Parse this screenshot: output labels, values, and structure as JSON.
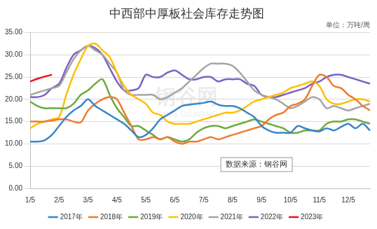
{
  "chart_data": {
    "type": "line",
    "title": "中西部中厚板社会库存走势图",
    "subtitle": "单位：万吨/周",
    "annotations": [
      "数据来源：钢谷网",
      "钢谷网",
      "GANG GU WANG"
    ],
    "categories": [
      "1/5",
      null,
      null,
      null,
      "2/5",
      null,
      null,
      null,
      "3/5",
      null,
      null,
      null,
      "4/5",
      null,
      null,
      null,
      "5/5",
      null,
      null,
      null,
      "6/5",
      null,
      null,
      null,
      "7/5",
      null,
      null,
      null,
      "8/5",
      null,
      null,
      null,
      "9/5",
      null,
      null,
      null,
      "10/5",
      null,
      null,
      null,
      "11/5",
      null,
      null,
      null,
      "12/5",
      null,
      null,
      null
    ],
    "ylim": [
      0,
      35
    ],
    "yticks": [
      {
        "value": 0,
        "label": "0.00"
      },
      {
        "value": 5,
        "label": "5.00"
      },
      {
        "value": 10,
        "label": "10.00"
      },
      {
        "value": 15,
        "label": "15.00"
      },
      {
        "value": 20,
        "label": "20.00"
      },
      {
        "value": 25,
        "label": "25.00"
      },
      {
        "value": 30,
        "label": "30.00"
      },
      {
        "value": 35,
        "label": "35.00"
      }
    ],
    "grid": true,
    "legend": "bottom",
    "series": [
      {
        "name": "2017年",
        "color": "#3b86c6",
        "values": [
          10.5,
          10.5,
          10.8,
          12,
          14,
          16,
          17.5,
          18.5,
          20,
          18.5,
          17.5,
          16.5,
          15.5,
          14.5,
          13,
          11.5,
          12,
          13.5,
          15.5,
          16.5,
          17.5,
          18.5,
          18.8,
          19,
          19.2,
          19.5,
          18.8,
          18.5,
          18.5,
          18,
          17,
          16,
          14,
          13,
          12.5,
          12.5,
          12.5,
          14,
          13.5,
          13,
          12.8,
          13.5,
          13,
          13.8,
          14.5,
          13.5,
          14.5,
          13
        ]
      },
      {
        "name": "2018年",
        "color": "#ed7d31",
        "values": [
          15,
          15,
          15,
          15.2,
          15.5,
          15.5,
          15,
          14.8,
          17.5,
          19,
          20,
          20.5,
          20,
          17,
          14,
          11,
          11,
          11.5,
          11,
          11.5,
          10.5,
          10,
          10.5,
          10.5,
          11,
          11.5,
          11,
          11.5,
          12,
          12.5,
          13,
          13.5,
          14,
          15.5,
          16.5,
          17,
          18.5,
          19,
          20,
          23,
          25.5,
          25,
          23,
          22.5,
          21,
          20,
          18.5,
          17.5
        ]
      },
      {
        "name": "2019年",
        "color": "#6aab3f",
        "values": [
          19.5,
          18.5,
          18,
          18,
          18,
          18,
          19,
          21,
          22,
          23.5,
          24.5,
          21,
          18,
          16,
          14,
          14,
          13,
          12,
          11,
          11.5,
          11,
          10.5,
          11,
          12.5,
          13.5,
          14,
          14,
          13.5,
          14,
          14.5,
          15,
          15.5,
          15,
          14.5,
          14,
          13.5,
          12.5,
          12.5,
          13,
          13,
          13,
          14.5,
          15,
          15,
          15.5,
          15.5,
          15,
          14.5
        ]
      },
      {
        "name": "2020年",
        "color": "#ffc000",
        "values": [
          13.5,
          14.5,
          15,
          15.5,
          16,
          21,
          25.5,
          29,
          32,
          32.5,
          31,
          29.5,
          26,
          23,
          21,
          20,
          19,
          17,
          16.5,
          15,
          14.5,
          14.5,
          14.5,
          15,
          15.5,
          16,
          16.5,
          17,
          17,
          17.5,
          18.5,
          19.5,
          20,
          20.5,
          21,
          21.5,
          22.5,
          23,
          23.5,
          24,
          23,
          20,
          19,
          19,
          19.5,
          20,
          20,
          19.5
        ]
      },
      {
        "name": "2021年",
        "color": "#a5a5a5",
        "values": [
          21,
          21.5,
          22,
          22.5,
          23,
          26,
          29,
          31,
          32,
          31,
          30,
          28,
          26,
          22,
          21,
          21,
          21,
          21,
          20,
          20.5,
          21.5,
          22.5,
          24,
          25.5,
          27,
          28,
          28,
          28,
          27.5,
          26,
          24,
          22,
          21,
          20.5,
          20,
          19,
          18,
          18.5,
          19.5,
          20.5,
          20,
          18,
          18.5,
          18,
          17.5,
          18,
          18.5,
          19
        ]
      },
      {
        "name": "2022年",
        "color": "#7b62c4",
        "values": [
          20.5,
          20.5,
          21,
          22.5,
          23.5,
          27,
          30,
          31,
          32,
          31.5,
          30,
          27,
          24,
          22,
          22,
          22.5,
          25.5,
          25,
          25,
          26,
          26.5,
          25.5,
          24.5,
          24.5,
          25,
          25,
          24,
          24.5,
          24.5,
          24.5,
          23.5,
          23,
          21,
          20.5,
          20.5,
          21,
          21.5,
          22,
          22.5,
          23.5,
          24,
          25,
          25.5,
          25.5,
          25,
          24.5,
          24,
          23.5
        ]
      },
      {
        "name": "2023年",
        "color": "#e8141b",
        "values": [
          24,
          24.6,
          25.1,
          25.5,
          null,
          null,
          null,
          null,
          null,
          null,
          null,
          null,
          null,
          null,
          null,
          null,
          null,
          null,
          null,
          null,
          null,
          null,
          null,
          null,
          null,
          null,
          null,
          null,
          null,
          null,
          null,
          null,
          null,
          null,
          null,
          null,
          null,
          null,
          null,
          null,
          null,
          null,
          null,
          null,
          null,
          null,
          null,
          null
        ]
      }
    ]
  }
}
